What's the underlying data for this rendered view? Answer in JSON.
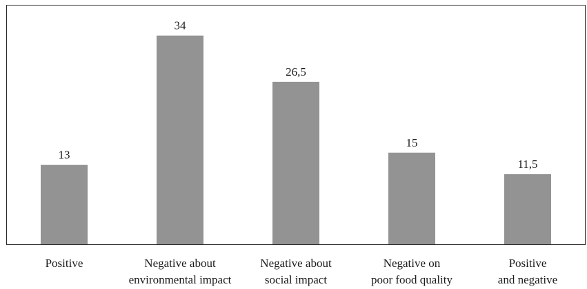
{
  "chart_data": {
    "type": "bar",
    "categories": [
      [
        "Positive"
      ],
      [
        "Negative about",
        "environmental impact"
      ],
      [
        "Negative about",
        "social impact"
      ],
      [
        "Negative on",
        "poor food quality"
      ],
      [
        "Positive",
        "and negative"
      ]
    ],
    "values": [
      13,
      34,
      26.5,
      15,
      11.5
    ],
    "value_labels": [
      "13",
      "34",
      "26,5",
      "15",
      "11,5"
    ],
    "title": "",
    "xlabel": "",
    "ylabel": "",
    "ylim": [
      0,
      39
    ],
    "grid": false,
    "legend": "none",
    "bar_color": "#939393",
    "frame_color": "#2b2b2b"
  }
}
